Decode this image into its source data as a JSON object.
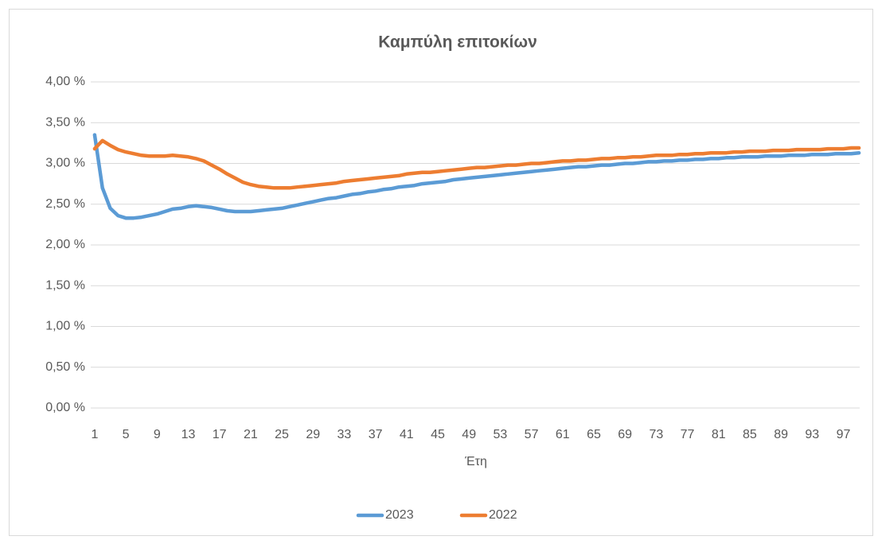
{
  "chart_data": {
    "type": "line",
    "title": "Καμπύλη επιτοκίων",
    "x_label": "Έτη",
    "categories": [
      1,
      null,
      null,
      null,
      5,
      null,
      null,
      null,
      9,
      null,
      null,
      null,
      13,
      null,
      null,
      null,
      17,
      null,
      null,
      null,
      21,
      null,
      null,
      null,
      25,
      null,
      null,
      null,
      29,
      null,
      null,
      null,
      33,
      null,
      null,
      null,
      37,
      null,
      null,
      null,
      41,
      null,
      null,
      null,
      45,
      null,
      null,
      null,
      49,
      null,
      null,
      null,
      53,
      null,
      null,
      null,
      57,
      null,
      null,
      null,
      61,
      null,
      null,
      null,
      65,
      null,
      null,
      null,
      69,
      null,
      null,
      null,
      73,
      null,
      null,
      null,
      77,
      null,
      null,
      null,
      81,
      null,
      null,
      null,
      85,
      null,
      null,
      null,
      89,
      null,
      null,
      null,
      93,
      null,
      null,
      null,
      97,
      null,
      null
    ],
    "series": [
      {
        "name": "2023",
        "color": "#5b9bd5",
        "values": [
          3.35,
          2.7,
          2.45,
          2.36,
          2.33,
          2.33,
          2.34,
          2.36,
          2.38,
          2.41,
          2.44,
          2.45,
          2.47,
          2.48,
          2.47,
          2.46,
          2.44,
          2.42,
          2.41,
          2.41,
          2.41,
          2.42,
          2.43,
          2.44,
          2.45,
          2.47,
          2.49,
          2.51,
          2.53,
          2.55,
          2.57,
          2.58,
          2.6,
          2.62,
          2.63,
          2.65,
          2.66,
          2.68,
          2.69,
          2.71,
          2.72,
          2.73,
          2.75,
          2.76,
          2.77,
          2.78,
          2.8,
          2.81,
          2.82,
          2.83,
          2.84,
          2.85,
          2.86,
          2.87,
          2.88,
          2.89,
          2.9,
          2.91,
          2.92,
          2.93,
          2.94,
          2.95,
          2.96,
          2.96,
          2.97,
          2.98,
          2.98,
          2.99,
          3.0,
          3.0,
          3.01,
          3.02,
          3.02,
          3.03,
          3.03,
          3.04,
          3.04,
          3.05,
          3.05,
          3.06,
          3.06,
          3.07,
          3.07,
          3.08,
          3.08,
          3.08,
          3.09,
          3.09,
          3.09,
          3.1,
          3.1,
          3.1,
          3.11,
          3.11,
          3.11,
          3.12,
          3.12,
          3.12,
          3.13
        ]
      },
      {
        "name": "2022",
        "color": "#ed7d31",
        "values": [
          3.18,
          3.28,
          3.22,
          3.17,
          3.14,
          3.12,
          3.1,
          3.09,
          3.09,
          3.09,
          3.1,
          3.09,
          3.08,
          3.06,
          3.03,
          2.98,
          2.93,
          2.87,
          2.82,
          2.77,
          2.74,
          2.72,
          2.71,
          2.7,
          2.7,
          2.7,
          2.71,
          2.72,
          2.73,
          2.74,
          2.75,
          2.76,
          2.78,
          2.79,
          2.8,
          2.81,
          2.82,
          2.83,
          2.84,
          2.85,
          2.87,
          2.88,
          2.89,
          2.89,
          2.9,
          2.91,
          2.92,
          2.93,
          2.94,
          2.95,
          2.95,
          2.96,
          2.97,
          2.98,
          2.98,
          2.99,
          3.0,
          3.0,
          3.01,
          3.02,
          3.03,
          3.03,
          3.04,
          3.04,
          3.05,
          3.06,
          3.06,
          3.07,
          3.07,
          3.08,
          3.08,
          3.09,
          3.1,
          3.1,
          3.1,
          3.11,
          3.11,
          3.12,
          3.12,
          3.13,
          3.13,
          3.13,
          3.14,
          3.14,
          3.15,
          3.15,
          3.15,
          3.16,
          3.16,
          3.16,
          3.17,
          3.17,
          3.17,
          3.17,
          3.18,
          3.18,
          3.18,
          3.19,
          3.19
        ]
      }
    ],
    "ylim": [
      0,
      4
    ],
    "yticks": [
      {
        "value": 0,
        "label": "0,00 %"
      },
      {
        "value": 0.5,
        "label": "0,50 %"
      },
      {
        "value": 1,
        "label": "1,00 %"
      },
      {
        "value": 1.5,
        "label": "1,50 %"
      },
      {
        "value": 2,
        "label": "2,00 %"
      },
      {
        "value": 2.5,
        "label": "2,50 %"
      },
      {
        "value": 3,
        "label": "3,00 %"
      },
      {
        "value": 3.5,
        "label": "3,50 %"
      },
      {
        "value": 4,
        "label": "4,00 %"
      }
    ],
    "grid": true,
    "legend": "bottom"
  }
}
